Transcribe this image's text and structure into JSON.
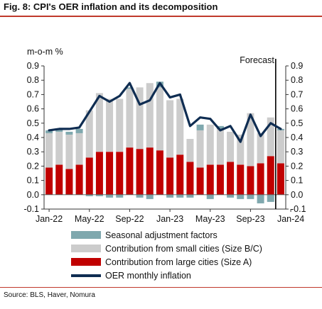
{
  "title": "Fig. 8: CPI's OER inflation and its decomposition",
  "source": "Source: BLS, Haver, Nomura",
  "colors": {
    "seasonal": "#7fa8ae",
    "small_cities": "#cccccc",
    "large_cities": "#c00000",
    "oer_line": "#0f2d52",
    "title_rule": "#c0392b"
  },
  "chart_data": {
    "type": "bar",
    "subtype": "stacked bar with line overlay",
    "ylabel": "m-o-m %",
    "ylim": [
      -0.1,
      0.9
    ],
    "yticks": [
      "0.9",
      "0.8",
      "0.7",
      "0.6",
      "0.5",
      "0.4",
      "0.3",
      "0.2",
      "0.1",
      "0.0",
      "-0.1"
    ],
    "yticks_right": [
      "0.9",
      "0.8",
      "0.7",
      "0.6",
      "0.5",
      "0.4",
      "0.3",
      "0.2",
      "0.1",
      "0.0",
      "-0.1"
    ],
    "xtick_labels": [
      "Jan-22",
      "May-22",
      "Sep-22",
      "Jan-23",
      "May-23",
      "Sep-23",
      "Jan-24"
    ],
    "categories": [
      "Jan-22",
      "Feb-22",
      "Mar-22",
      "Apr-22",
      "May-22",
      "Jun-22",
      "Jul-22",
      "Aug-22",
      "Sep-22",
      "Oct-22",
      "Nov-22",
      "Dec-22",
      "Jan-23",
      "Feb-23",
      "Mar-23",
      "Apr-23",
      "May-23",
      "Jun-23",
      "Jul-23",
      "Aug-23",
      "Sep-23",
      "Oct-23",
      "Nov-23",
      "Dec-23"
    ],
    "grid": false,
    "annotation": "Forecast",
    "forecast_divider_after": "Nov-23",
    "series": [
      {
        "name": "Contribution from large cities (Size A)",
        "kind": "bar",
        "values": [
          0.19,
          0.21,
          0.18,
          0.21,
          0.26,
          0.3,
          0.3,
          0.3,
          0.33,
          0.32,
          0.33,
          0.31,
          0.26,
          0.28,
          0.23,
          0.19,
          0.21,
          0.21,
          0.23,
          0.21,
          0.2,
          0.22,
          0.27,
          0.22
        ]
      },
      {
        "name": "Contribution from small cities (Size B/C)",
        "kind": "bar",
        "values": [
          0.24,
          0.23,
          0.24,
          0.22,
          0.33,
          0.41,
          0.37,
          0.37,
          0.41,
          0.43,
          0.45,
          0.44,
          0.4,
          0.39,
          0.16,
          0.26,
          0.28,
          0.25,
          0.21,
          0.21,
          0.37,
          0.21,
          0.27,
          0.23
        ]
      },
      {
        "name": "Seasonal adjustment factors",
        "kind": "bar",
        "values": [
          0.02,
          0.02,
          0.02,
          0.03,
          -0.01,
          -0.01,
          -0.02,
          -0.02,
          0.01,
          -0.02,
          -0.03,
          0.04,
          -0.02,
          -0.02,
          -0.02,
          0.04,
          -0.03,
          0.02,
          -0.02,
          -0.03,
          -0.03,
          -0.06,
          -0.05,
          0.01
        ]
      },
      {
        "name": "OER monthly inflation",
        "kind": "line",
        "values": [
          0.45,
          0.46,
          0.46,
          0.47,
          0.58,
          0.69,
          0.65,
          0.69,
          0.78,
          0.63,
          0.66,
          0.78,
          0.68,
          0.7,
          0.48,
          0.54,
          0.53,
          0.45,
          0.48,
          0.37,
          0.56,
          0.41,
          0.5,
          0.46
        ]
      }
    ]
  }
}
